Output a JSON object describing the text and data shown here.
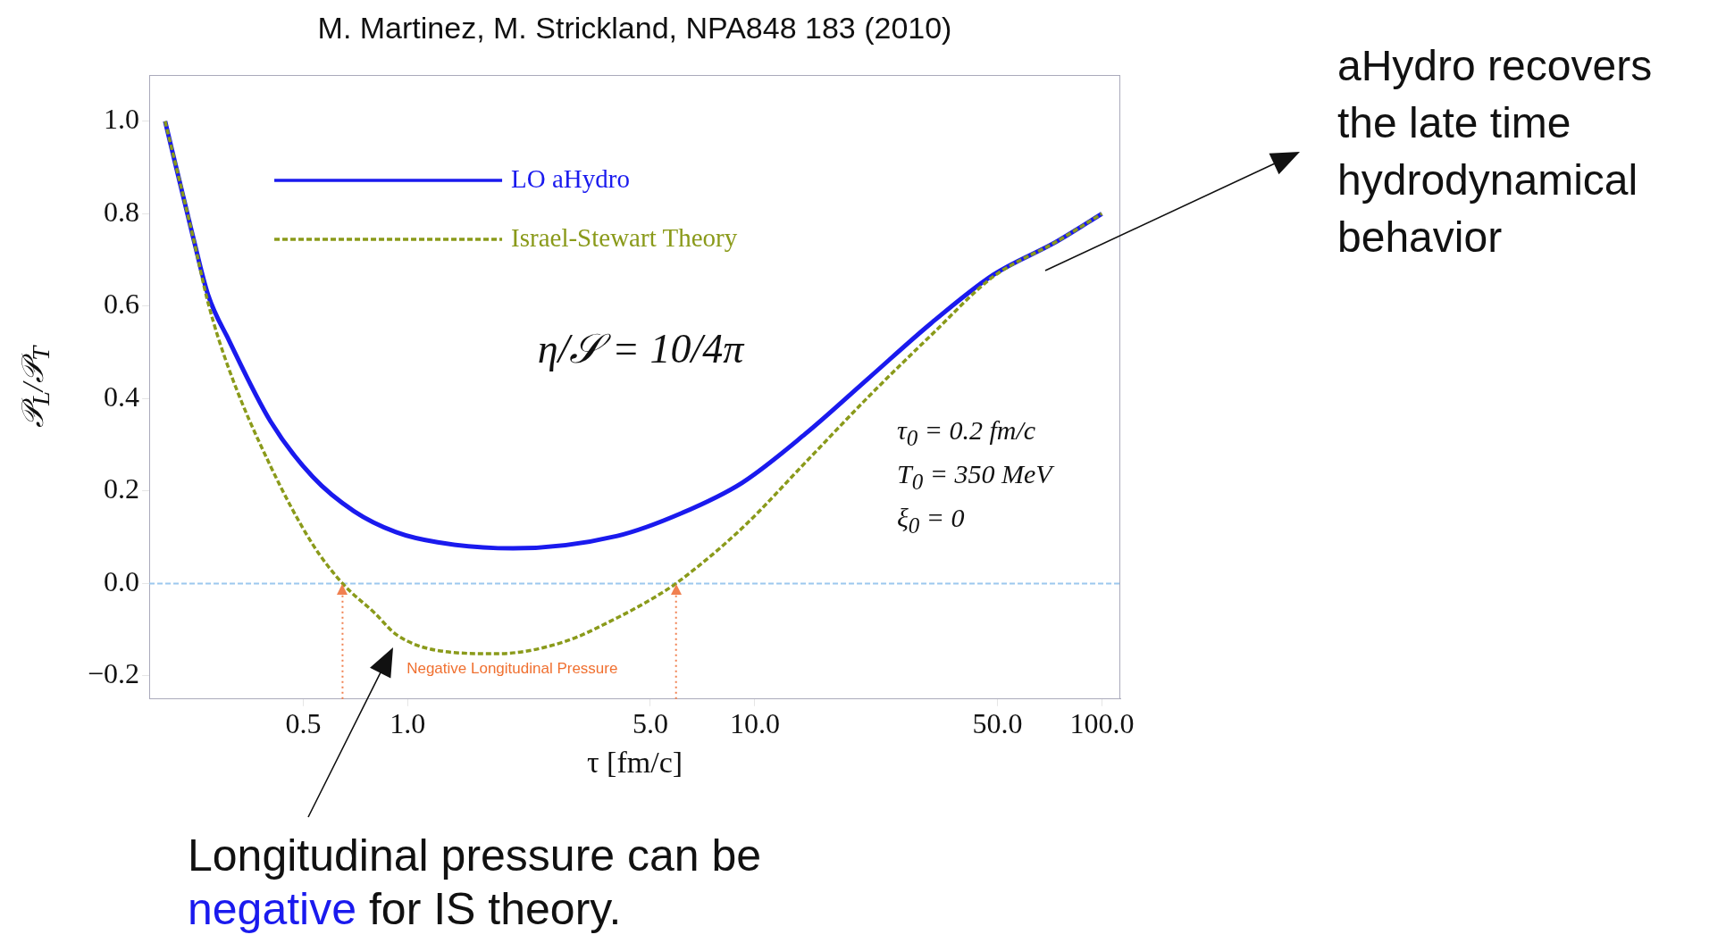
{
  "chart_data": {
    "type": "line",
    "title": "M. Martinez, M. Strickland, NPA848 183 (2010)",
    "xlabel": "τ [fm/c]",
    "ylabel": "𝒫$_{L}$/𝒫$_{T}$",
    "log": "x",
    "xlim": [
      0.18,
      113
    ],
    "xticks": [
      {
        "value": 0.5,
        "label": "0.5"
      },
      {
        "value": 1,
        "label": "1.0"
      },
      {
        "value": 5,
        "label": "5.0"
      },
      {
        "value": 10,
        "label": "10.0"
      },
      {
        "value": 50,
        "label": "50.0"
      },
      {
        "value": 100,
        "label": "100.0"
      }
    ],
    "ylim": [
      -0.25,
      1.1
    ],
    "yticks": [
      {
        "value": -0.2,
        "label": "−0.2"
      },
      {
        "value": 0,
        "label": "0.0"
      },
      {
        "value": 0.2,
        "label": "0.2"
      },
      {
        "value": 0.4,
        "label": "0.4"
      },
      {
        "value": 0.6,
        "label": "0.6"
      },
      {
        "value": 0.8,
        "label": "0.8"
      },
      {
        "value": 1,
        "label": "1.0"
      }
    ],
    "legend": "top left",
    "marker": "none",
    "series": [
      {
        "name": "LO aHydro",
        "color": "#1a1aee",
        "line_style": "solid",
        "x": [
          0.2,
          0.241,
          0.266,
          0.305,
          0.403,
          0.532,
          0.701,
          0.925,
          1.22,
          2.01,
          4.02,
          6.1,
          9.2,
          14.0,
          21.2,
          32.1,
          48.7,
          73.8,
          100
        ],
        "values": [
          1.0,
          0.748,
          0.624,
          0.527,
          0.35,
          0.231,
          0.156,
          0.111,
          0.089,
          0.076,
          0.103,
          0.151,
          0.218,
          0.324,
          0.443,
          0.562,
          0.668,
          0.739,
          0.8
        ]
      },
      {
        "name": "Israel-Stewart Theory",
        "color": "#8a9a1a",
        "line_style": "dashed",
        "x": [
          0.2,
          0.241,
          0.266,
          0.305,
          0.403,
          0.532,
          0.649,
          0.806,
          0.925,
          1.22,
          1.8,
          2.8,
          4.02,
          5.14,
          5.93,
          9.2,
          14.0,
          21.2,
          32.1,
          48.7,
          73.8,
          100
        ],
        "values": [
          1.0,
          0.748,
          0.607,
          0.465,
          0.253,
          0.085,
          0,
          -0.065,
          -0.11,
          -0.145,
          -0.152,
          -0.127,
          -0.074,
          -0.03,
          0,
          0.12,
          0.262,
          0.403,
          0.536,
          0.664,
          0.739,
          0.8
        ]
      }
    ],
    "ref_lines": [
      {
        "axis": "y",
        "value": 0,
        "color": "#9cc8ee",
        "line_style": "dashed"
      },
      {
        "axis": "x",
        "value": 0.649,
        "color": "#f08050",
        "line_style": "dotted"
      },
      {
        "axis": "x",
        "value": 5.93,
        "color": "#f08050",
        "line_style": "dotted"
      }
    ],
    "annotations": [
      "η/𝒮 = 10/4π",
      "τ$_{0}$ = 0.2 fm/c",
      "T$_{0}$ = 350 MeV",
      "ξ$_{0}$ = 0",
      "Negative Longitudinal Pressure",
      "aHydro recovers the late time hydrodynamical behavior",
      "Longitudinal pressure can be negative for IS theory."
    ]
  }
}
